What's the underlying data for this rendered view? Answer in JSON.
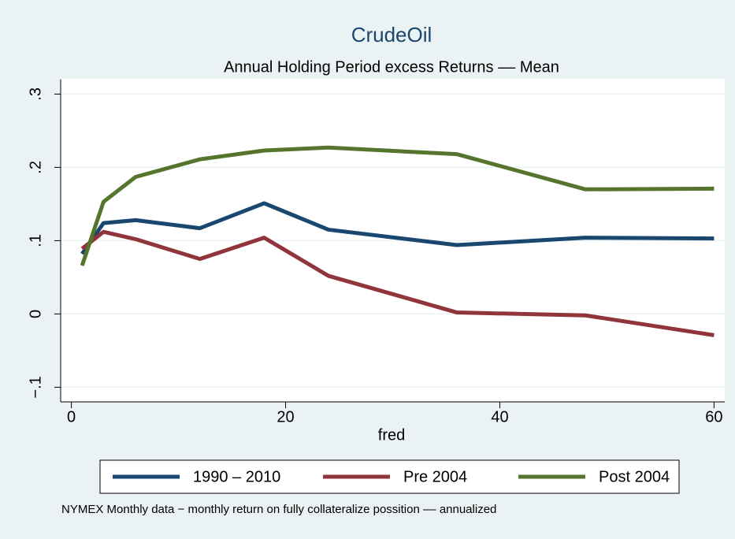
{
  "chart_data": {
    "type": "line",
    "title": "CrudeOil",
    "subtitle": "Annual Holding Period excess Returns –– Mean",
    "x_label": "fred",
    "note": "NYMEX Monthly data − monthly return on fully collateralize possition –– annualized",
    "x": [
      1,
      3,
      6,
      12,
      18,
      24,
      36,
      48,
      60
    ],
    "series": [
      {
        "name": "1990 – 2010",
        "color": "#1a476f",
        "values": [
          0.082,
          0.124,
          0.128,
          0.117,
          0.151,
          0.115,
          0.094,
          0.104,
          0.103
        ]
      },
      {
        "name": "Pre 2004",
        "color": "#90353b",
        "values": [
          0.089,
          0.112,
          0.102,
          0.075,
          0.104,
          0.052,
          0.002,
          -0.002,
          -0.029
        ]
      },
      {
        "name": "Post 2004",
        "color": "#55752f",
        "values": [
          0.066,
          0.153,
          0.187,
          0.211,
          0.223,
          0.227,
          0.218,
          0.17,
          0.171
        ]
      }
    ],
    "xlim": [
      -1,
      61
    ],
    "xticks": [
      0,
      20,
      40,
      60
    ],
    "ylim": [
      -0.12,
      0.32
    ],
    "yticks": [
      {
        "value": -0.1,
        "label": "−.1"
      },
      0,
      {
        "value": 0.1,
        "label": ".1"
      },
      {
        "value": 0.2,
        "label": ".2"
      },
      {
        "value": 0.3,
        "label": ".3"
      }
    ],
    "grid": true,
    "legend": "bottom"
  }
}
